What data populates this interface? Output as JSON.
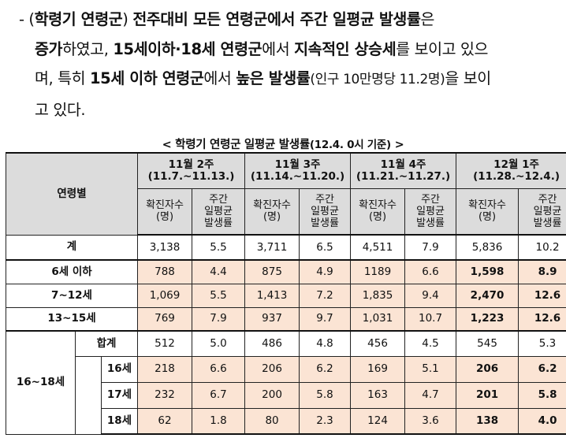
{
  "paragraph": {
    "line1_a": "- (",
    "line1_b": "학령기 연령군",
    "line1_c": ") ",
    "line1_d": "전주대비 모든 연령군에서 주간 일평균 발생률",
    "line1_e": "은",
    "line2_a": "증가",
    "line2_b": "하였고, ",
    "line2_c": "15세이하·18세 연령군",
    "line2_d": "에서 ",
    "line2_e": "지속적인 상승세",
    "line2_f": "를 보이고 있으",
    "line3_a": "며, 특히 ",
    "line3_b": "15세 이하 연령군",
    "line3_c": "에서 ",
    "line3_d": "높은 발생률",
    "line3_e": "(인구 10만명당 11.2명)",
    "line3_f": "을 보이",
    "line4": "고 있다."
  },
  "caption": {
    "main": "< 학령기 연령군 일평균 발생률",
    "sub": "(12.4. 0시 기준)",
    "close": " >"
  },
  "table": {
    "age_header": "연령별",
    "weeks": [
      {
        "name": "11월 2주",
        "range": "(11.7.~11.13.)"
      },
      {
        "name": "11월 3주",
        "range": "(11.14.~11.20.)"
      },
      {
        "name": "11월 4주",
        "range": "(11.21.~11.27.)"
      },
      {
        "name": "12월 1주",
        "range": "(11.28.~12.4.)"
      }
    ],
    "col_confirmed_1": "확진자수",
    "col_confirmed_2": "(명)",
    "col_rate_1": "주간",
    "col_rate_2": "일평균",
    "col_rate_3": "발생률",
    "rows": {
      "total": {
        "label": "계",
        "values": [
          "3,138",
          "5.5",
          "3,711",
          "6.5",
          "4,511",
          "7.9",
          "5,836",
          "10.2"
        ]
      },
      "under6": {
        "label": "6세 이하",
        "values": [
          "788",
          "4.4",
          "875",
          "4.9",
          "1189",
          "6.6",
          "1,598",
          "8.9"
        ]
      },
      "age7_12": {
        "label": "7~12세",
        "values": [
          "1,069",
          "5.5",
          "1,413",
          "7.2",
          "1,835",
          "9.4",
          "2,470",
          "12.6"
        ]
      },
      "age13_15": {
        "label": "13~15세",
        "values": [
          "769",
          "7.9",
          "937",
          "9.7",
          "1,031",
          "10.7",
          "1,223",
          "12.6"
        ]
      },
      "group16_18": {
        "label": "16~18세"
      },
      "sub_total": {
        "label": "합계",
        "values": [
          "512",
          "5.0",
          "486",
          "4.8",
          "456",
          "4.5",
          "545",
          "5.3"
        ]
      },
      "age16": {
        "label": "16세",
        "values": [
          "218",
          "6.6",
          "206",
          "6.2",
          "169",
          "5.1",
          "206",
          "6.2"
        ]
      },
      "age17": {
        "label": "17세",
        "values": [
          "232",
          "6.7",
          "200",
          "5.8",
          "163",
          "4.7",
          "201",
          "5.8"
        ]
      },
      "age18": {
        "label": "18세",
        "values": [
          "62",
          "1.8",
          "80",
          "2.3",
          "124",
          "3.6",
          "138",
          "4.0"
        ]
      }
    }
  },
  "colors": {
    "header_bg": "#dcdcdc",
    "highlight_bg": "#fbe4d4"
  }
}
